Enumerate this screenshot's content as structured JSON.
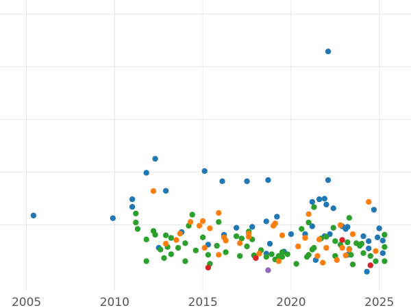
{
  "colors": {
    "background": "#ffffff",
    "grid": "#e8e8e8",
    "tick_text": "#555555",
    "palette": {
      "blue": "#1f77b4",
      "green": "#2ca02c",
      "orange": "#ff7f0e",
      "red": "#d62728",
      "purple": "#9467bd"
    }
  },
  "chart_data": {
    "type": "scatter",
    "title": "",
    "xlabel": "",
    "ylabel": "",
    "xlim": [
      2003.5,
      2026.8
    ],
    "ylim": [
      0,
      1
    ],
    "x_ticks": [
      2005,
      2010,
      2015,
      2020,
      2025
    ],
    "x_tick_labels": [
      "2005",
      "2010",
      "2015",
      "2020",
      "2025"
    ],
    "y_tick_labels_visible": false,
    "y_gridlines": [
      0.227,
      0.408,
      0.589,
      0.771,
      0.952
    ],
    "grid": true,
    "legend": "none",
    "series": [
      {
        "color": "blue",
        "points": [
          [
            2005.4,
            0.259
          ],
          [
            2009.9,
            0.25
          ],
          [
            2011.0,
            0.289
          ],
          [
            2011.0,
            0.315
          ],
          [
            2011.8,
            0.406
          ],
          [
            2012.3,
            0.454
          ],
          [
            2012.9,
            0.344
          ],
          [
            2015.1,
            0.412
          ],
          [
            2016.1,
            0.377
          ],
          [
            2017.5,
            0.377
          ],
          [
            2018.7,
            0.381
          ],
          [
            2019.2,
            0.255
          ],
          [
            2022.1,
            0.823
          ],
          [
            2022.1,
            0.381
          ],
          [
            2021.6,
            0.315
          ],
          [
            2021.2,
            0.306
          ],
          [
            2021.9,
            0.317
          ],
          [
            2022.0,
            0.297
          ],
          [
            2022.4,
            0.284
          ],
          [
            2023.2,
            0.22
          ],
          [
            2024.7,
            0.279
          ],
          [
            2018.6,
            0.239
          ],
          [
            2018.8,
            0.162
          ],
          [
            2017.8,
            0.22
          ],
          [
            2016.9,
            0.217
          ],
          [
            2016.2,
            0.193
          ],
          [
            2013.8,
            0.202
          ],
          [
            2012.5,
            0.148
          ],
          [
            2020.8,
            0.195
          ],
          [
            2021.2,
            0.222
          ],
          [
            2021.9,
            0.188
          ],
          [
            2022.2,
            0.195
          ],
          [
            2022.9,
            0.222
          ],
          [
            2023.1,
            0.213
          ],
          [
            2024.1,
            0.188
          ],
          [
            2024.4,
            0.171
          ],
          [
            2024.9,
            0.184
          ],
          [
            2025.2,
            0.173
          ],
          [
            2024.4,
            0.146
          ],
          [
            2023.2,
            0.124
          ],
          [
            2021.4,
            0.106
          ],
          [
            2019.6,
            0.135
          ],
          [
            2018.6,
            0.128
          ],
          [
            2020.0,
            0.195
          ],
          [
            2024.3,
            0.066
          ],
          [
            2025.0,
            0.215
          ],
          [
            2025.2,
            0.13
          ],
          [
            2015.3,
            0.159
          ]
        ]
      },
      {
        "color": "green",
        "points": [
          [
            2011.2,
            0.266
          ],
          [
            2011.2,
            0.235
          ],
          [
            2011.3,
            0.213
          ],
          [
            2011.8,
            0.177
          ],
          [
            2012.2,
            0.206
          ],
          [
            2012.3,
            0.193
          ],
          [
            2012.6,
            0.142
          ],
          [
            2012.9,
            0.191
          ],
          [
            2013.0,
            0.151
          ],
          [
            2013.2,
            0.126
          ],
          [
            2013.6,
            0.148
          ],
          [
            2014.0,
            0.164
          ],
          [
            2014.2,
            0.224
          ],
          [
            2014.4,
            0.262
          ],
          [
            2014.6,
            0.139
          ],
          [
            2014.0,
            0.102
          ],
          [
            2012.8,
            0.113
          ],
          [
            2011.8,
            0.102
          ],
          [
            2015.0,
            0.184
          ],
          [
            2015.3,
            0.124
          ],
          [
            2015.4,
            0.093
          ],
          [
            2015.8,
            0.155
          ],
          [
            2015.9,
            0.237
          ],
          [
            2016.3,
            0.133
          ],
          [
            2016.9,
            0.188
          ],
          [
            2017.2,
            0.18
          ],
          [
            2017.5,
            0.153
          ],
          [
            2017.6,
            0.204
          ],
          [
            2017.8,
            0.177
          ],
          [
            2017.9,
            0.122
          ],
          [
            2018.3,
            0.14
          ],
          [
            2018.6,
            0.117
          ],
          [
            2018.9,
            0.126
          ],
          [
            2019.1,
            0.108
          ],
          [
            2019.3,
            0.12
          ],
          [
            2019.5,
            0.133
          ],
          [
            2019.8,
            0.126
          ],
          [
            2020.3,
            0.093
          ],
          [
            2020.6,
            0.213
          ],
          [
            2020.9,
            0.117
          ],
          [
            2021.0,
            0.235
          ],
          [
            2021.2,
            0.142
          ],
          [
            2021.3,
            0.288
          ],
          [
            2021.7,
            0.18
          ],
          [
            2022.0,
            0.186
          ],
          [
            2022.4,
            0.217
          ],
          [
            2022.5,
            0.171
          ],
          [
            2022.8,
            0.159
          ],
          [
            2023.2,
            0.167
          ],
          [
            2023.3,
            0.144
          ],
          [
            2023.4,
            0.124
          ],
          [
            2023.5,
            0.091
          ],
          [
            2023.7,
            0.164
          ],
          [
            2024.0,
            0.162
          ],
          [
            2024.1,
            0.13
          ],
          [
            2024.5,
            0.12
          ],
          [
            2024.8,
            0.102
          ],
          [
            2025.3,
            0.193
          ],
          [
            2025.3,
            0.151
          ],
          [
            2025.3,
            0.102
          ],
          [
            2023.3,
            0.251
          ],
          [
            2022.5,
            0.12
          ],
          [
            2013.2,
            0.182
          ],
          [
            2017.1,
            0.12
          ],
          [
            2021.3,
            0.148
          ],
          [
            2023.9,
            0.155
          ],
          [
            2021.0,
            0.124
          ],
          [
            2019.5,
            0.117
          ]
        ]
      },
      {
        "color": "orange",
        "points": [
          [
            2012.2,
            0.343
          ],
          [
            2013.7,
            0.197
          ],
          [
            2014.3,
            0.237
          ],
          [
            2014.8,
            0.224
          ],
          [
            2015.0,
            0.24
          ],
          [
            2015.4,
            0.215
          ],
          [
            2015.9,
            0.268
          ],
          [
            2016.3,
            0.173
          ],
          [
            2016.2,
            0.184
          ],
          [
            2017.1,
            0.164
          ],
          [
            2017.6,
            0.197
          ],
          [
            2018.2,
            0.128
          ],
          [
            2019.0,
            0.224
          ],
          [
            2019.5,
            0.191
          ],
          [
            2020.4,
            0.153
          ],
          [
            2020.8,
            0.182
          ],
          [
            2021.0,
            0.264
          ],
          [
            2021.6,
            0.177
          ],
          [
            2021.8,
            0.097
          ],
          [
            2022.0,
            0.148
          ],
          [
            2022.8,
            0.226
          ],
          [
            2023.1,
            0.122
          ],
          [
            2023.3,
            0.142
          ],
          [
            2024.4,
            0.306
          ],
          [
            2024.8,
            0.137
          ],
          [
            2015.1,
            0.148
          ],
          [
            2013.5,
            0.175
          ],
          [
            2012.9,
            0.162
          ],
          [
            2015.9,
            0.124
          ],
          [
            2019.1,
            0.232
          ],
          [
            2022.6,
            0.106
          ],
          [
            2022.9,
            0.148
          ],
          [
            2023.5,
            0.195
          ],
          [
            2021.5,
            0.12
          ],
          [
            2019.3,
            0.102
          ],
          [
            2017.6,
            0.186
          ]
        ]
      },
      {
        "color": "red",
        "points": [
          [
            2015.3,
            0.08
          ],
          [
            2018.0,
            0.113
          ],
          [
            2022.9,
            0.175
          ],
          [
            2024.5,
            0.088
          ]
        ]
      },
      {
        "color": "purple",
        "points": [
          [
            2018.7,
            0.071
          ]
        ]
      }
    ]
  }
}
